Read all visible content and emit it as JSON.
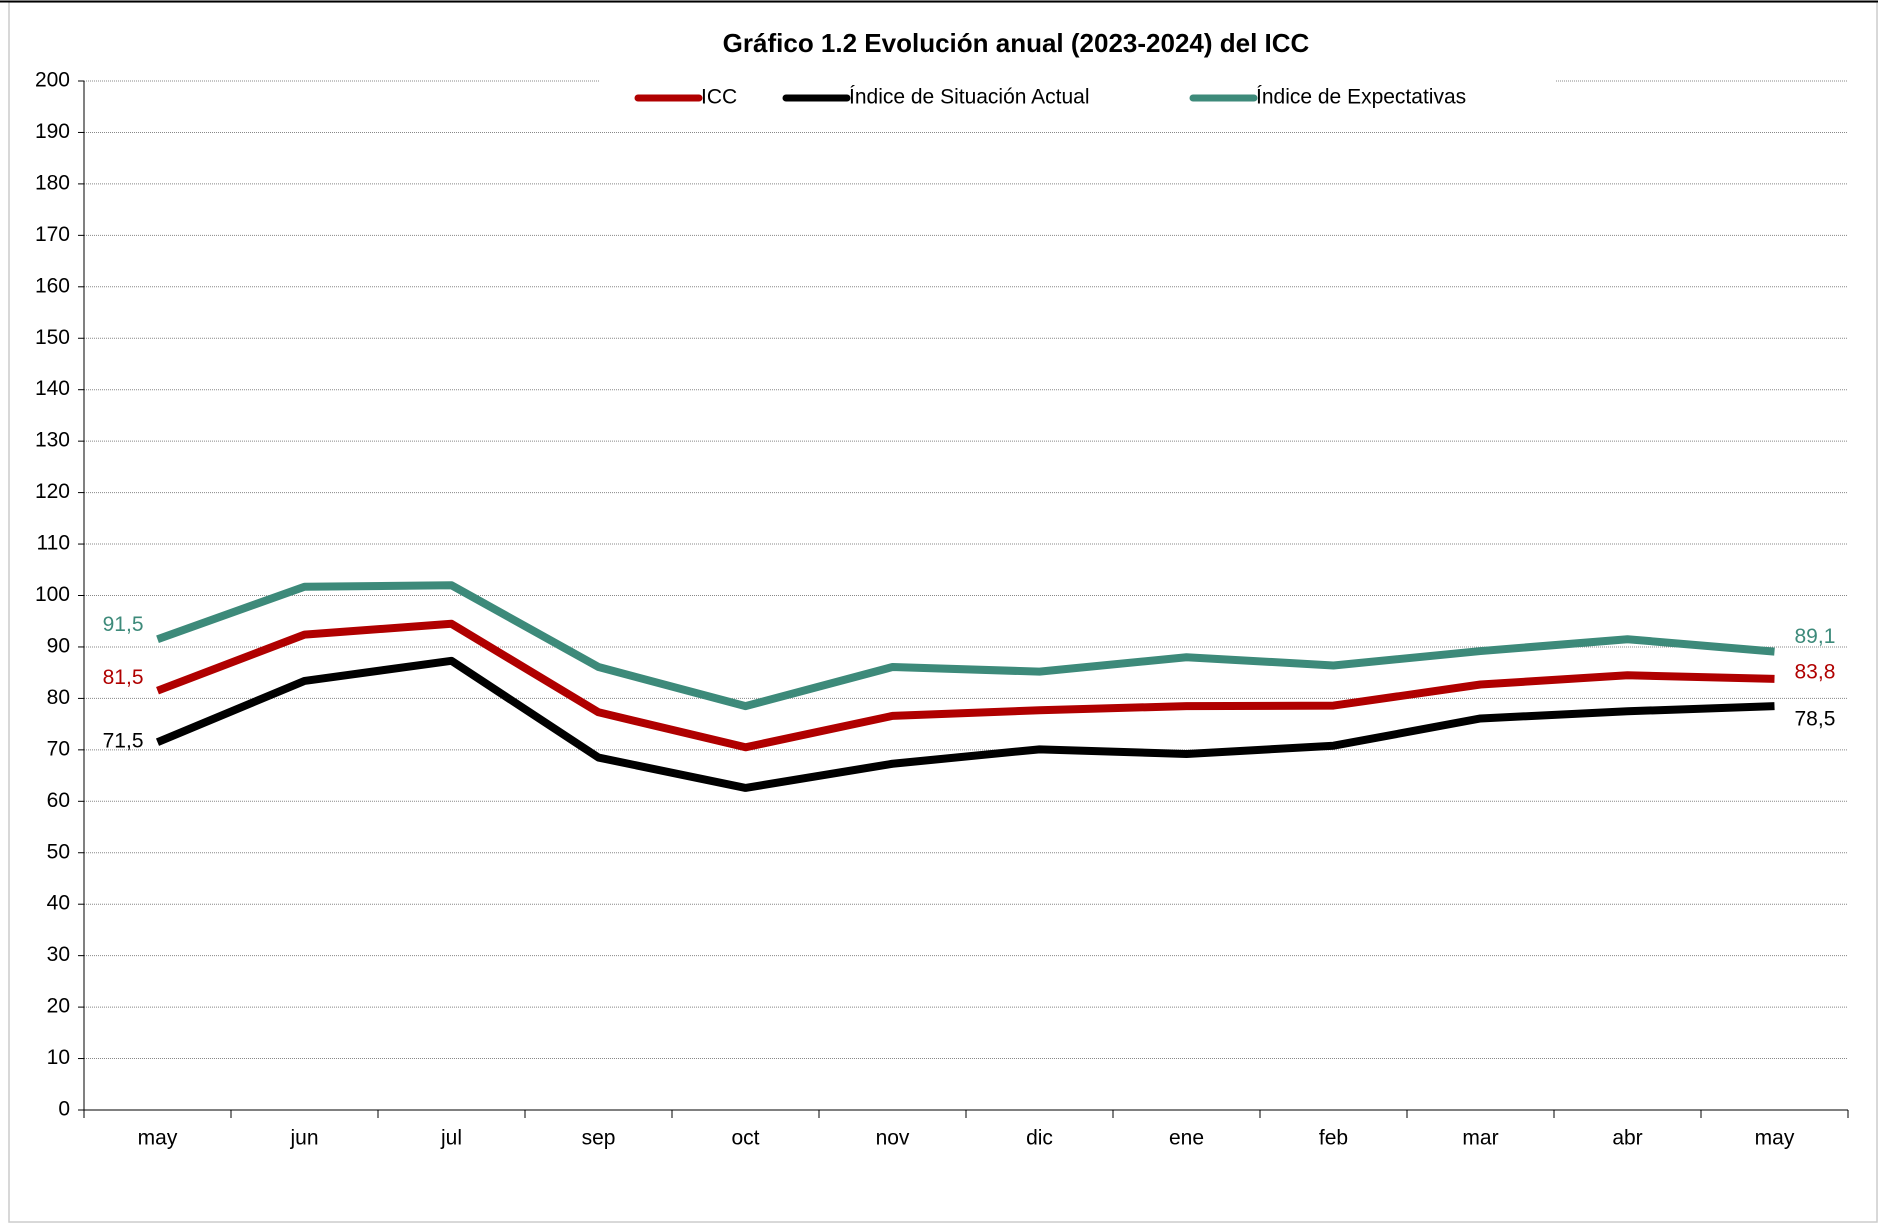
{
  "chart_data": {
    "type": "line",
    "title": "Gráfico 1.2 Evolución anual (2023-2024) del ICC",
    "categories": [
      "may",
      "jun",
      "jul",
      "sep",
      "oct",
      "nov",
      "dic",
      "ene",
      "feb",
      "mar",
      "abr",
      "may"
    ],
    "series": [
      {
        "name": "ICC",
        "color": "#b00000",
        "values": [
          81.5,
          92.4,
          94.5,
          77.3,
          70.5,
          76.6,
          77.7,
          78.5,
          78.6,
          82.7,
          84.5,
          83.8
        ],
        "value_labels": [
          "81,5",
          null,
          null,
          null,
          null,
          null,
          null,
          null,
          null,
          null,
          null,
          "83,8"
        ]
      },
      {
        "name": "Índice de Situación Actual",
        "color": "#000000",
        "values": [
          71.5,
          83.4,
          87.3,
          68.5,
          62.6,
          67.3,
          70.1,
          69.2,
          70.8,
          76.1,
          77.5,
          78.5
        ],
        "value_labels": [
          "71,5",
          null,
          null,
          null,
          null,
          null,
          null,
          null,
          null,
          null,
          null,
          "78,5"
        ]
      },
      {
        "name": "Índice de Expectativas",
        "color": "#3d8a7a",
        "values": [
          91.5,
          101.7,
          102,
          86.1,
          78.5,
          86.1,
          85.2,
          88,
          86.4,
          89.2,
          91.5,
          89.1
        ],
        "value_labels": [
          "91,5",
          null,
          null,
          null,
          null,
          null,
          null,
          null,
          null,
          null,
          null,
          "89,1"
        ]
      }
    ],
    "ylim": [
      0,
      200
    ],
    "yticks": [
      0,
      10,
      20,
      30,
      40,
      50,
      60,
      70,
      80,
      90,
      100,
      110,
      120,
      130,
      140,
      150,
      160,
      170,
      180,
      190,
      200
    ],
    "grid": true,
    "legend": "top"
  }
}
